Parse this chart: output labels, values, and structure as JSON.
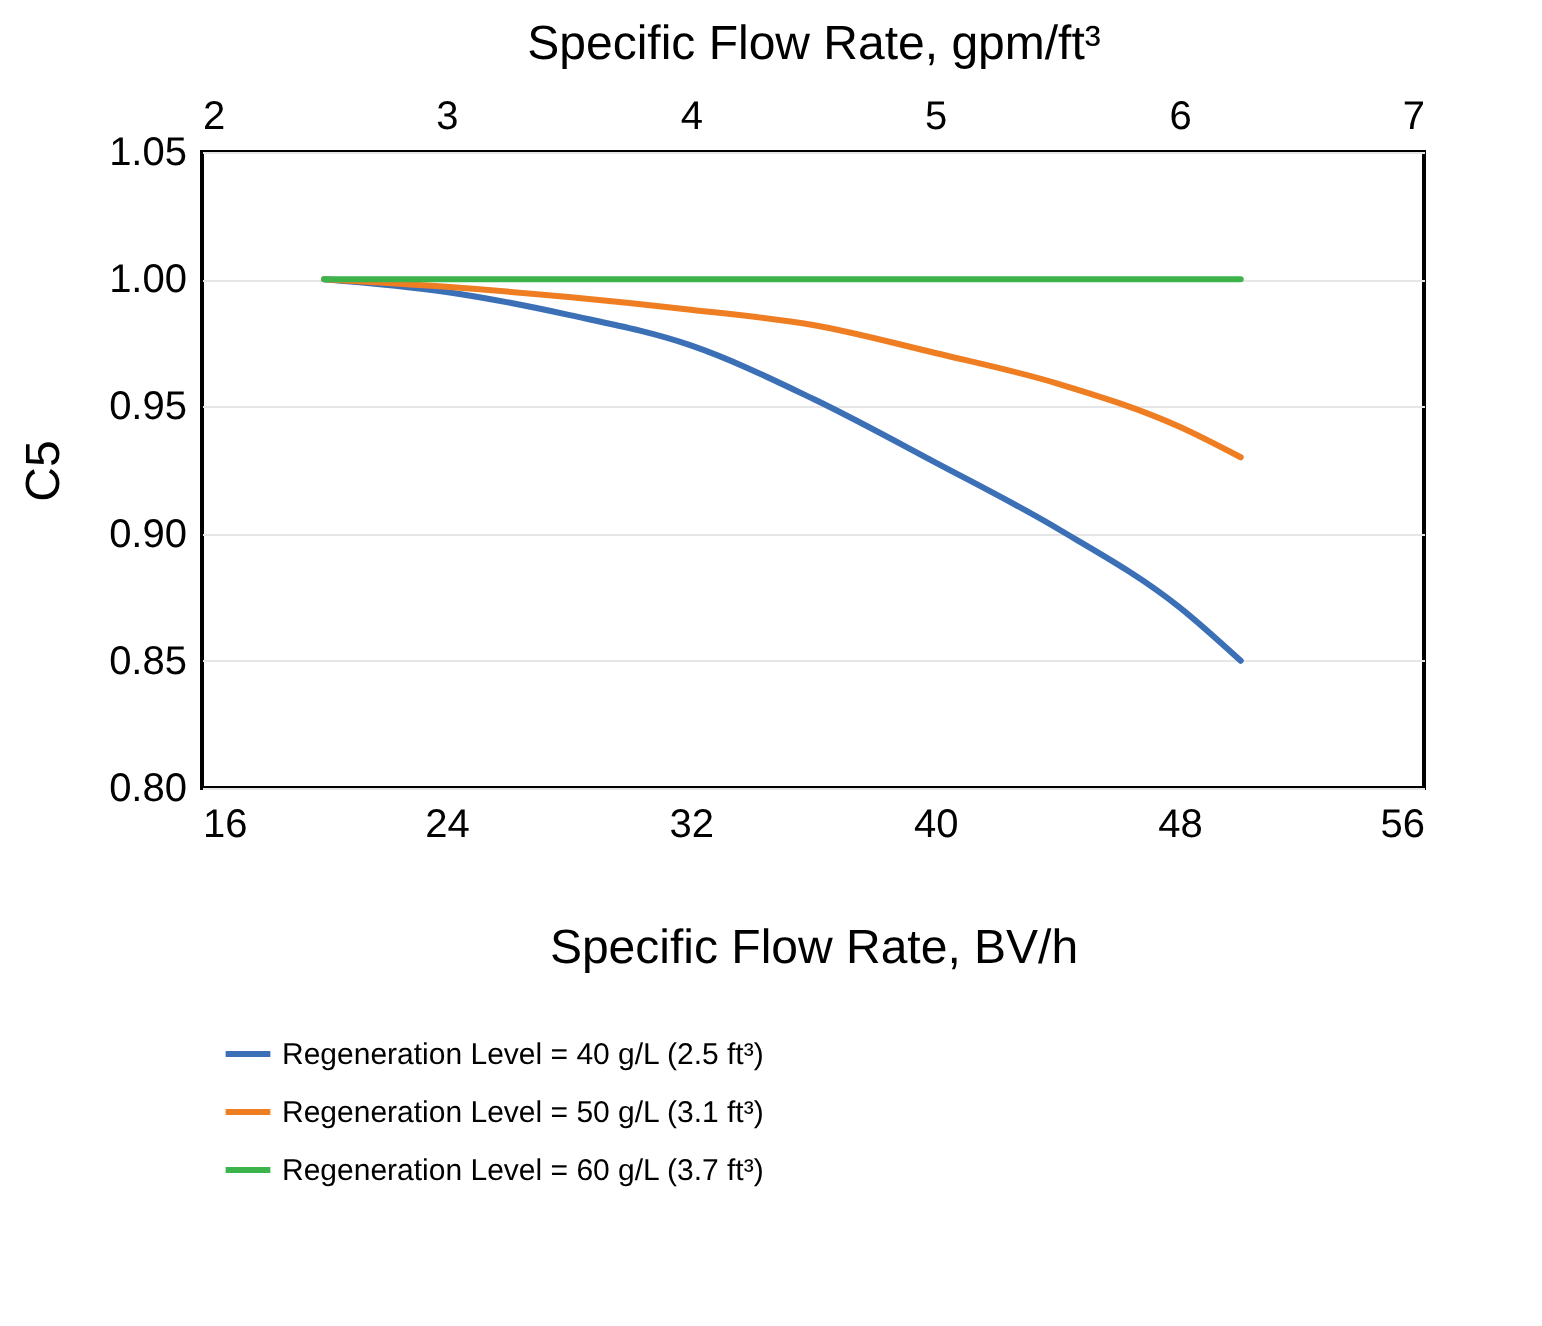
{
  "chart_data": {
    "type": "line",
    "xlabel": "Specific Flow Rate, BV/h",
    "x2label": "Specific Flow Rate, gpm/ft³",
    "ylabel": "C5",
    "x": [
      20,
      24,
      28,
      32,
      36,
      40,
      44,
      48,
      50
    ],
    "xlim": [
      16,
      56
    ],
    "xticks": [
      16,
      24,
      32,
      40,
      48,
      56
    ],
    "x2lim": [
      2,
      7
    ],
    "x2ticks": [
      2,
      3,
      4,
      5,
      6,
      7
    ],
    "ylim": [
      0.8,
      1.05
    ],
    "yticks": [
      {
        "value": 0.8,
        "label": "0.80"
      },
      {
        "value": 0.85,
        "label": "0.85"
      },
      {
        "value": 0.9,
        "label": "0.90"
      },
      {
        "value": 0.95,
        "label": "0.95"
      },
      {
        "value": 1.0,
        "label": "1.00"
      },
      {
        "value": 1.05,
        "label": "1.05"
      }
    ],
    "grid": "y",
    "legend": "bottom",
    "line_style": "solid",
    "marker": "none",
    "series": [
      {
        "name": "Regeneration Level = 40 g/L (2.5 ft³)",
        "color": "#3b6fb6",
        "values": [
          1.0,
          0.995,
          0.986,
          0.974,
          0.953,
          0.928,
          0.902,
          0.871,
          0.85
        ]
      },
      {
        "name": "Regeneration Level = 50 g/L (3.1 ft³)",
        "color": "#ef7d22",
        "values": [
          1.0,
          0.997,
          0.993,
          0.988,
          0.982,
          0.971,
          0.959,
          0.942,
          0.93
        ]
      },
      {
        "name": "Regeneration Level = 60 g/L (3.7 ft³)",
        "color": "#3cb44b",
        "values": [
          1.0,
          1.0,
          1.0,
          1.0,
          1.0,
          1.0,
          1.0,
          1.0,
          1.0
        ]
      }
    ]
  }
}
